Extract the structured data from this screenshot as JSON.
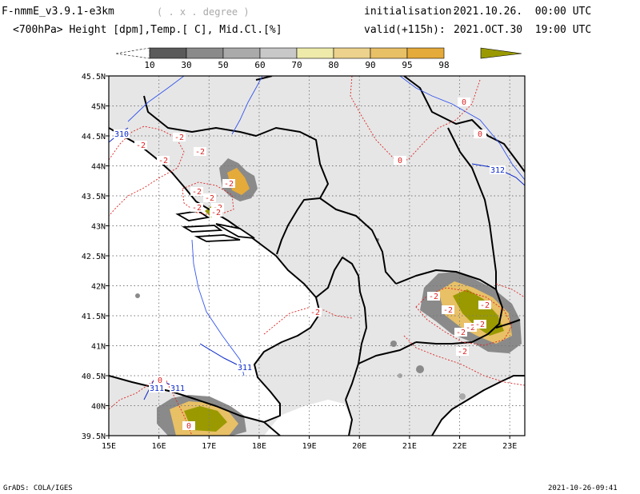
{
  "header": {
    "model": "F-nmmE_v3.9.1-e3km",
    "units_note": "( . x . degree )",
    "fields": "<700hPa> Height [dpm],Temp.[ C], Mid.Cl.[%]",
    "init_label": "initialisation:",
    "init_value": "2021.10.26.  00:00 UTC",
    "valid_label": "valid(+115h):",
    "valid_value": "2021.OCT.30  19:00 UTC"
  },
  "colorbar": {
    "labels": [
      "10",
      "30",
      "50",
      "60",
      "70",
      "80",
      "90",
      "95",
      "98"
    ],
    "colors": [
      "#ffffff",
      "#5a5a5a",
      "#8a8a8a",
      "#aaaaaa",
      "#c8c8c8",
      "#eeeaaa",
      "#ecd28c",
      "#e8c066",
      "#e4aa3a",
      "#9a9a00"
    ]
  },
  "map": {
    "lon_labels": [
      "15E",
      "16E",
      "17E",
      "18E",
      "19E",
      "20E",
      "21E",
      "22E",
      "23E"
    ],
    "lat_labels": [
      "45.5N",
      "45N",
      "44.5N",
      "44N",
      "43.5N",
      "43N",
      "42.5N",
      "42N",
      "41.5N",
      "41N",
      "40.5N",
      "40N",
      "39.5N"
    ],
    "lon_range": [
      15,
      23.3
    ],
    "lat_range": [
      39.5,
      45.5
    ],
    "background": "#e6e6e6",
    "height_labels": [
      "310",
      "311",
      "311",
      "311",
      "312"
    ],
    "temp_labels": [
      "-2",
      "-2",
      "-2",
      "-2",
      "-2",
      "-2",
      "-2",
      "-2",
      "-2",
      "-2",
      "-2",
      "0",
      "0",
      "0",
      "-2",
      "-2",
      "-2",
      "-2",
      "-2",
      "-2",
      "-2",
      "0",
      "0"
    ]
  },
  "footer": {
    "left": "GrADS: COLA/IGES",
    "right": "2021-10-26-09:41"
  }
}
